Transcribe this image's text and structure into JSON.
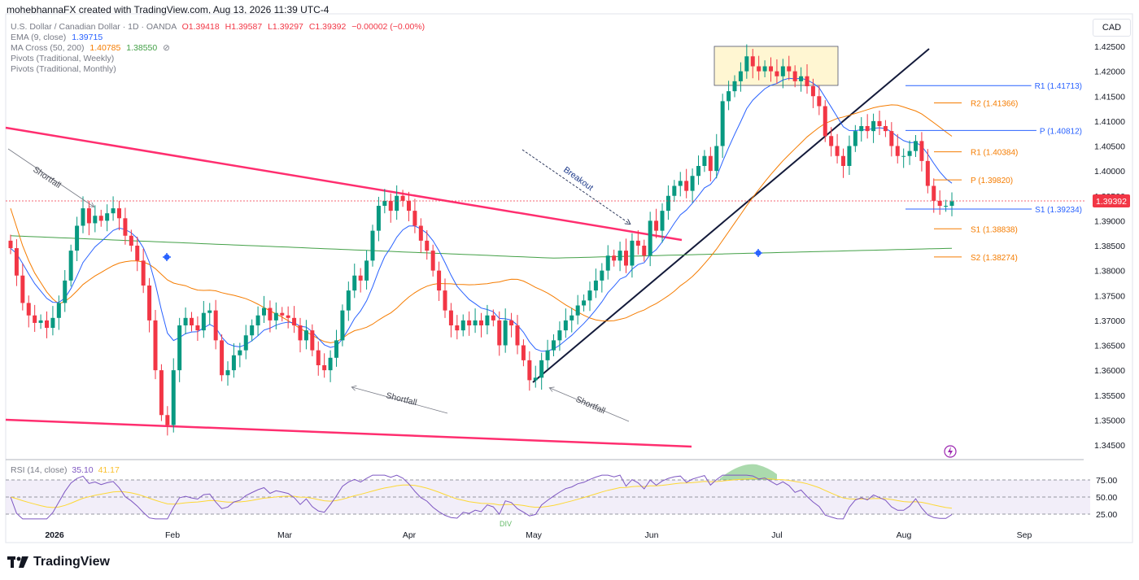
{
  "header": {
    "author_line": "mohebhannaFX created with TradingView.com, Aug 13, 2026 11:39 UTC-4",
    "symbol": "U.S. Dollar / Canadian Dollar · 1D · OANDA",
    "ohlc": {
      "o": "O1.39418",
      "h": "H1.39587",
      "l": "L1.39297",
      "c": "C1.39392",
      "chg": "−0.00002 (−0.00%)"
    },
    "ema": {
      "label": "EMA (9, close)",
      "value": "1.39715"
    },
    "ma_cross": {
      "label": "MA Cross (50, 200)",
      "v1": "1.40785",
      "v2": "1.38550"
    },
    "pivots_weekly": "Pivots (Traditional, Weekly)",
    "pivots_monthly": "Pivots (Traditional, Monthly)"
  },
  "currency_button": "CAD",
  "rsi": {
    "label": "RSI (14, close)",
    "value": "35.10",
    "ma": "41.17",
    "levels": [
      "75.00",
      "50.00",
      "25.00"
    ],
    "div_text": "DIV"
  },
  "brand": "TradingView",
  "colors": {
    "up": "#089981",
    "down": "#f23645",
    "ema": "#2962ff",
    "ma50": "#f57c00",
    "ma200": "#43a047",
    "trend": "#ff2e6f",
    "pivot_monthly": "#2962ff",
    "pivot_weekly": "#f57c00",
    "rsi": "#7e57c2",
    "rsi_ma": "#fdd835"
  },
  "annotations": {
    "shortfall_1": "Shortfall",
    "shortfall_2": "Shortfall",
    "shortfall_3": "Shortfall",
    "breakout": "Breakout"
  },
  "chart_data": {
    "type": "candlestick",
    "y_ticks": [
      "1.42500",
      "1.42000",
      "1.41500",
      "1.41000",
      "1.40500",
      "1.40000",
      "1.39500",
      "1.39000",
      "1.38500",
      "1.38000",
      "1.37500",
      "1.37000",
      "1.36500",
      "1.36000",
      "1.35500",
      "1.35000",
      "1.34500"
    ],
    "x_ticks": [
      "2026",
      "Feb",
      "Mar",
      "Apr",
      "May",
      "Jun",
      "Jul",
      "Aug",
      "Sep"
    ],
    "last_price": "1.39392",
    "pivots": [
      {
        "label": "R1 (1.41713)",
        "value": 1.41713,
        "kind": "monthly"
      },
      {
        "label": "R2 (1.41366)",
        "value": 1.41366,
        "kind": "weekly"
      },
      {
        "label": "P (1.40812)",
        "value": 1.40812,
        "kind": "monthly"
      },
      {
        "label": "R1 (1.40384)",
        "value": 1.40384,
        "kind": "weekly"
      },
      {
        "label": "P (1.39820)",
        "value": 1.3982,
        "kind": "weekly"
      },
      {
        "label": "S1 (1.39234)",
        "value": 1.39234,
        "kind": "monthly"
      },
      {
        "label": "S1 (1.38838)",
        "value": 1.38838,
        "kind": "weekly"
      },
      {
        "label": "S2 (1.38274)",
        "value": 1.38274,
        "kind": "weekly"
      }
    ],
    "closes": [
      1.3845,
      1.379,
      1.3735,
      1.371,
      1.3695,
      1.37,
      1.3685,
      1.3705,
      1.3735,
      1.378,
      1.384,
      1.389,
      1.3925,
      1.3895,
      1.391,
      1.39,
      1.3915,
      1.3925,
      1.3905,
      1.387,
      1.385,
      1.382,
      1.377,
      1.37,
      1.36,
      1.351,
      1.349,
      1.36,
      1.369,
      1.3705,
      1.369,
      1.368,
      1.3715,
      1.372,
      1.366,
      1.359,
      1.36,
      1.363,
      1.364,
      1.367,
      1.369,
      1.371,
      1.3725,
      1.37,
      1.3715,
      1.371,
      1.3705,
      1.369,
      1.366,
      1.368,
      1.364,
      1.361,
      1.36,
      1.3625,
      1.366,
      1.372,
      1.376,
      1.379,
      1.378,
      1.382,
      1.388,
      1.393,
      1.394,
      1.392,
      1.395,
      1.394,
      1.392,
      1.389,
      1.386,
      1.384,
      1.38,
      1.376,
      1.372,
      1.369,
      1.368,
      1.37,
      1.369,
      1.37,
      1.369,
      1.371,
      1.37,
      1.365,
      1.37,
      1.369,
      1.365,
      1.362,
      1.358,
      1.3585,
      1.362,
      1.364,
      1.366,
      1.368,
      1.37,
      1.371,
      1.373,
      1.374,
      1.376,
      1.378,
      1.38,
      1.383,
      1.382,
      1.384,
      1.381,
      1.386,
      1.385,
      1.383,
      1.39,
      1.388,
      1.392,
      1.395,
      1.397,
      1.398,
      1.396,
      1.399,
      1.401,
      1.403,
      1.4,
      1.405,
      1.414,
      1.416,
      1.418,
      1.42,
      1.423,
      1.421,
      1.42,
      1.421,
      1.42,
      1.419,
      1.421,
      1.42,
      1.418,
      1.419,
      1.417,
      1.415,
      1.413,
      1.407,
      1.405,
      1.403,
      1.401,
      1.405,
      1.408,
      1.409,
      1.408,
      1.41,
      1.409,
      1.408,
      1.405,
      1.403,
      1.403,
      1.404,
      1.406,
      1.402,
      1.397,
      1.394,
      1.393,
      1.393,
      1.3939
    ]
  }
}
